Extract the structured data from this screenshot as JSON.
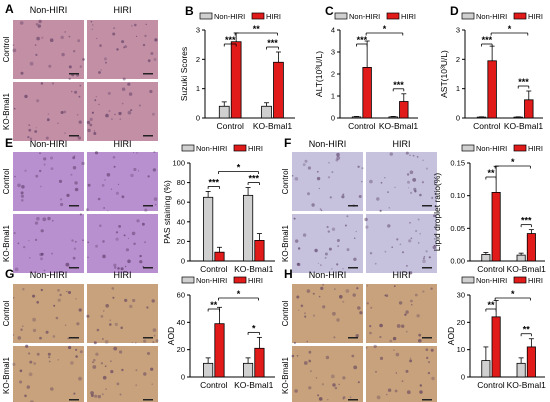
{
  "colors": {
    "non_hiri": "#d0d0d0",
    "hiri": "#e11a1a",
    "he_stain": "#c28fa5",
    "pas_stain": "#b990cf",
    "oil_red_stain": "#c6c2dd",
    "ihc_stain": "#c7a27d"
  },
  "legend": [
    "Non-HIRI",
    "HIRI"
  ],
  "image_panels": [
    {
      "letter": "A",
      "col_labels": [
        "Non-HIRI",
        "HIRI"
      ],
      "row_labels": [
        "Control",
        "KO-Bmal1"
      ],
      "stain": "he_stain"
    },
    {
      "letter": "E",
      "col_labels": [
        "Non-HIRI",
        "HIRI"
      ],
      "row_labels": [
        "Control",
        "KO-Bmal1"
      ],
      "stain": "pas_stain"
    },
    {
      "letter": "F",
      "col_labels": [
        "Non-HIRI",
        "HIRI"
      ],
      "row_labels": [
        "Control",
        "KO-Bmal1"
      ],
      "stain": "oil_red_stain"
    },
    {
      "letter": "G",
      "col_labels": [
        "Non-HIRI",
        "HIRI"
      ],
      "row_labels": [
        "Control",
        "KO-Bmal1"
      ],
      "stain": "ihc_stain"
    },
    {
      "letter": "H",
      "col_labels": [
        "Non-HIRI",
        "HIRI"
      ],
      "row_labels": [
        "Control",
        "KO-Bmal1"
      ],
      "stain": "ihc_stain"
    }
  ],
  "chart_data": [
    {
      "id": "B",
      "type": "bar",
      "categories": [
        "Control",
        "KO-Bmal1"
      ],
      "ylabel": "Suzuki Scores",
      "ylim": [
        0,
        3
      ],
      "yticks": [
        "0",
        "1",
        "2",
        "3"
      ],
      "series": [
        {
          "name": "Non-HIRI",
          "values": [
            0.4,
            0.4
          ],
          "errors": [
            0.15,
            0.12
          ]
        },
        {
          "name": "HIRI",
          "values": [
            2.6,
            1.9
          ],
          "errors": [
            0.3,
            0.35
          ]
        }
      ],
      "annotations": [
        {
          "text": "***",
          "groups": [
            "Control"
          ]
        },
        {
          "text": "***",
          "groups": [
            "KO-Bmal1"
          ]
        },
        {
          "text": "**",
          "groups": [
            "Control",
            "KO-Bmal1"
          ]
        }
      ]
    },
    {
      "id": "C",
      "type": "bar",
      "categories": [
        "Control",
        "KO-Bmal1"
      ],
      "ylabel": "ALT(10³U/L)",
      "ylim": [
        0,
        4
      ],
      "yticks": [
        "0",
        "1",
        "2",
        "3",
        "4"
      ],
      "series": [
        {
          "name": "Non-HIRI",
          "values": [
            0.05,
            0.05
          ],
          "errors": [
            0.02,
            0.02
          ]
        },
        {
          "name": "HIRI",
          "values": [
            2.3,
            0.75
          ],
          "errors": [
            1.2,
            0.35
          ]
        }
      ],
      "annotations": [
        {
          "text": "***",
          "groups": [
            "Control"
          ]
        },
        {
          "text": "***",
          "groups": [
            "KO-Bmal1"
          ]
        },
        {
          "text": "*",
          "groups": [
            "Control",
            "KO-Bmal1"
          ]
        }
      ]
    },
    {
      "id": "D",
      "type": "bar",
      "categories": [
        "Control",
        "KO-Bmal1"
      ],
      "ylabel": "AST(10³U/L)",
      "ylim": [
        0,
        3
      ],
      "yticks": [
        "0",
        "1",
        "2",
        "3"
      ],
      "series": [
        {
          "name": "Non-HIRI",
          "values": [
            0.03,
            0.03
          ],
          "errors": [
            0.01,
            0.01
          ]
        },
        {
          "name": "HIRI",
          "values": [
            1.95,
            0.62
          ],
          "errors": [
            0.5,
            0.3
          ]
        }
      ],
      "annotations": [
        {
          "text": "***",
          "groups": [
            "Control"
          ]
        },
        {
          "text": "***",
          "groups": [
            "KO-Bmal1"
          ]
        },
        {
          "text": "*",
          "groups": [
            "Control",
            "KO-Bmal1"
          ]
        }
      ]
    },
    {
      "id": "E",
      "type": "bar",
      "categories": [
        "Control",
        "KO-Bmal1"
      ],
      "ylabel": "PAS staining (%)",
      "ylim": [
        0,
        100
      ],
      "yticks": [
        "0",
        "20",
        "40",
        "60",
        "80",
        "100"
      ],
      "series": [
        {
          "name": "Non-HIRI",
          "values": [
            65,
            67
          ],
          "errors": [
            6,
            8
          ]
        },
        {
          "name": "HIRI",
          "values": [
            9,
            21
          ],
          "errors": [
            5,
            7
          ]
        }
      ],
      "annotations": [
        {
          "text": "***",
          "groups": [
            "Control"
          ]
        },
        {
          "text": "***",
          "groups": [
            "KO-Bmal1"
          ]
        },
        {
          "text": "*",
          "groups": [
            "Control",
            "KO-Bmal1"
          ]
        }
      ]
    },
    {
      "id": "F",
      "type": "bar",
      "categories": [
        "Control",
        "KO-Bmal1"
      ],
      "ylabel": "Lipid droplet ratio(%)",
      "ylim": [
        0,
        0.15
      ],
      "yticks": [
        "0.00",
        "0.05",
        "0.10",
        "0.15"
      ],
      "series": [
        {
          "name": "Non-HIRI",
          "values": [
            0.01,
            0.009
          ],
          "errors": [
            0.003,
            0.003
          ]
        },
        {
          "name": "HIRI",
          "values": [
            0.105,
            0.042
          ],
          "errors": [
            0.04,
            0.006
          ]
        }
      ],
      "annotations": [
        {
          "text": "**",
          "groups": [
            "Control"
          ]
        },
        {
          "text": "***",
          "groups": [
            "KO-Bmal1"
          ]
        },
        {
          "text": "*",
          "groups": [
            "Control",
            "KO-Bmal1"
          ]
        }
      ]
    },
    {
      "id": "G",
      "type": "bar",
      "categories": [
        "Control",
        "KO-Bmal1"
      ],
      "ylabel": "AOD",
      "ylim": [
        0,
        60
      ],
      "yticks": [
        "0",
        "20",
        "40",
        "60"
      ],
      "series": [
        {
          "name": "Non-HIRI",
          "values": [
            10,
            10
          ],
          "errors": [
            4,
            4
          ]
        },
        {
          "name": "HIRI",
          "values": [
            39,
            21
          ],
          "errors": [
            12,
            8
          ]
        }
      ],
      "annotations": [
        {
          "text": "**",
          "groups": [
            "Control"
          ]
        },
        {
          "text": "*",
          "groups": [
            "KO-Bmal1"
          ]
        },
        {
          "text": "*",
          "groups": [
            "Control",
            "KO-Bmal1"
          ]
        }
      ]
    },
    {
      "id": "H",
      "type": "bar",
      "categories": [
        "Control",
        "KO-Bmal1"
      ],
      "ylabel": "AOD",
      "ylim": [
        0,
        30
      ],
      "yticks": [
        "0",
        "10",
        "20",
        "30"
      ],
      "series": [
        {
          "name": "Non-HIRI",
          "values": [
            6,
            5
          ],
          "errors": [
            5,
            2
          ]
        },
        {
          "name": "HIRI",
          "values": [
            22,
            11
          ],
          "errors": [
            6,
            3
          ]
        }
      ],
      "annotations": [
        {
          "text": "**",
          "groups": [
            "Control"
          ]
        },
        {
          "text": "**",
          "groups": [
            "KO-Bmal1"
          ]
        },
        {
          "text": "*",
          "groups": [
            "Control",
            "KO-Bmal1"
          ]
        }
      ]
    }
  ]
}
